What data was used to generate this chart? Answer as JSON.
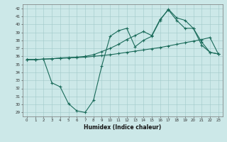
{
  "xlabel": "Humidex (Indice chaleur)",
  "bg_color": "#cce8e8",
  "line_color": "#1a6b5a",
  "xlim": [
    -0.5,
    23.5
  ],
  "ylim": [
    28.5,
    42.5
  ],
  "xticks": [
    0,
    1,
    2,
    3,
    4,
    5,
    6,
    7,
    8,
    9,
    10,
    11,
    12,
    13,
    14,
    15,
    16,
    17,
    18,
    19,
    20,
    21,
    22,
    23
  ],
  "yticks": [
    29,
    30,
    31,
    32,
    33,
    34,
    35,
    36,
    37,
    38,
    39,
    40,
    41,
    42
  ],
  "line1_x": [
    0,
    1,
    2,
    3,
    4,
    5,
    6,
    7,
    8,
    9,
    10,
    11,
    12,
    13,
    14,
    15,
    16,
    17,
    18,
    19,
    20,
    21,
    22,
    23
  ],
  "line1_y": [
    35.6,
    35.6,
    35.65,
    35.7,
    35.75,
    35.8,
    35.85,
    35.9,
    36.0,
    36.1,
    36.2,
    36.35,
    36.5,
    36.65,
    36.8,
    36.95,
    37.1,
    37.3,
    37.5,
    37.7,
    37.9,
    38.1,
    38.35,
    36.3
  ],
  "line2_x": [
    0,
    1,
    2,
    3,
    4,
    5,
    6,
    7,
    8,
    9,
    10,
    11,
    12,
    13,
    14,
    15,
    16,
    17,
    18,
    19,
    20,
    21,
    22,
    23
  ],
  "line2_y": [
    35.6,
    35.6,
    35.65,
    32.7,
    32.2,
    30.1,
    29.2,
    29.0,
    30.5,
    34.8,
    38.5,
    39.2,
    39.5,
    37.2,
    38.0,
    38.5,
    40.5,
    41.9,
    40.8,
    40.5,
    39.5,
    37.8,
    36.5,
    36.3
  ],
  "line3_x": [
    0,
    1,
    2,
    3,
    4,
    5,
    6,
    7,
    8,
    9,
    10,
    11,
    12,
    13,
    14,
    15,
    16,
    17,
    18,
    19,
    20,
    21,
    22,
    23
  ],
  "line3_y": [
    35.6,
    35.6,
    35.65,
    35.7,
    35.8,
    35.85,
    35.9,
    36.0,
    36.2,
    36.6,
    37.0,
    37.5,
    38.1,
    38.6,
    39.1,
    38.6,
    40.6,
    41.8,
    40.5,
    39.5,
    39.5,
    37.4,
    36.5,
    36.3
  ]
}
